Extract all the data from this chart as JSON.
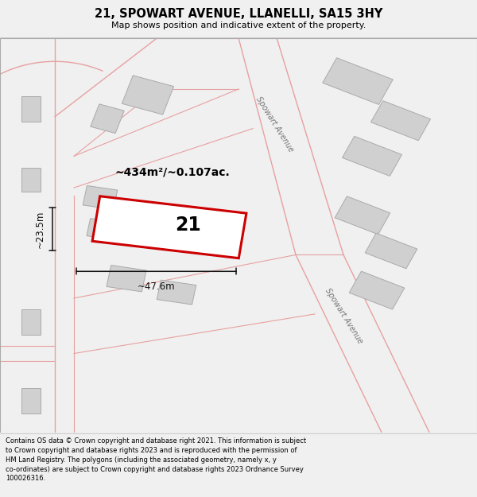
{
  "title": "21, SPOWART AVENUE, LLANELLI, SA15 3HY",
  "subtitle": "Map shows position and indicative extent of the property.",
  "footer": "Contains OS data © Crown copyright and database right 2021. This information is subject\nto Crown copyright and database rights 2023 and is reproduced with the permission of\nHM Land Registry. The polygons (including the associated geometry, namely x, y\nco-ordinates) are subject to Crown copyright and database rights 2023 Ordnance Survey\n100026316.",
  "bg_color": "#f0f0f0",
  "map_bg": "#ffffff",
  "road_color": "#e8a0a0",
  "building_fill": "#d0d0d0",
  "building_edge": "#aaaaaa",
  "plot_fill": "#ffffff",
  "plot_edge": "#cc0000",
  "plot_edge_width": 2.2,
  "dim_color": "#111111",
  "area_text": "~434m²/~0.107ac.",
  "plot_number": "21",
  "dim_width": "~47.6m",
  "dim_height": "~23.5m",
  "road_label": "Spowart Avenue"
}
